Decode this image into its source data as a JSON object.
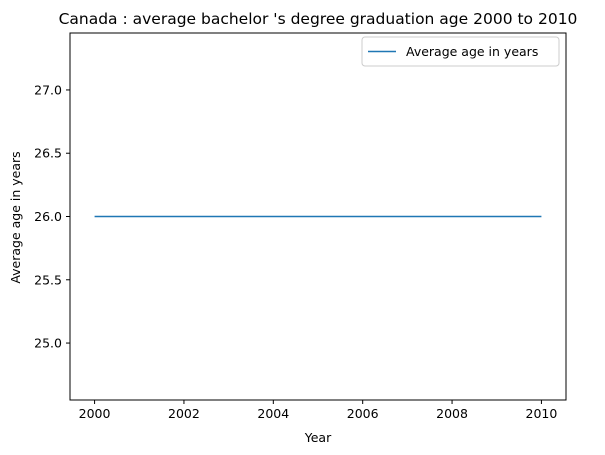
{
  "chart_data": {
    "type": "line",
    "title": "Canada : average bachelor 's degree graduation age 2000 to 2010",
    "xlabel": "Year",
    "ylabel": "Average age in years",
    "xlim": [
      1999.45,
      2010.55
    ],
    "ylim": [
      24.55,
      27.45
    ],
    "x_ticks": [
      2000,
      2002,
      2004,
      2006,
      2008,
      2010
    ],
    "y_ticks": [
      25.0,
      25.5,
      26.0,
      26.5,
      27.0
    ],
    "y_tick_labels": [
      "25.0",
      "25.5",
      "26.0",
      "26.5",
      "27.0"
    ],
    "grid": false,
    "legend_position": "top-right",
    "series": [
      {
        "name": "Average age in years",
        "color": "#1f77b4",
        "x": [
          2000,
          2001,
          2002,
          2003,
          2004,
          2005,
          2006,
          2007,
          2008,
          2009,
          2010
        ],
        "y": [
          26,
          26,
          26,
          26,
          26,
          26,
          26,
          26,
          26,
          26,
          26
        ]
      }
    ]
  }
}
